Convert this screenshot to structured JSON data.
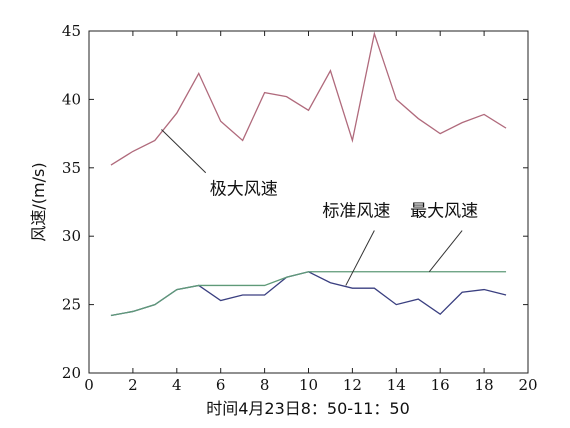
{
  "chart_data": {
    "type": "line",
    "xlabel": "时间4月23日8：50-11：50",
    "ylabel": "风速/(m/s)",
    "xlim": [
      0,
      20
    ],
    "ylim": [
      20,
      45
    ],
    "xticks": [
      0,
      2,
      4,
      6,
      8,
      10,
      12,
      14,
      16,
      18,
      20
    ],
    "yticks": [
      20,
      25,
      30,
      35,
      40,
      45
    ],
    "grid": false,
    "series": [
      {
        "name": "极大风速",
        "color": "#b06a7c",
        "x": [
          1,
          2,
          3,
          4,
          5,
          6,
          7,
          8,
          9,
          10,
          11,
          12,
          13,
          14,
          15,
          16,
          17,
          18,
          19
        ],
        "y": [
          35.2,
          36.2,
          37.0,
          39.0,
          41.9,
          38.4,
          37.0,
          40.5,
          40.2,
          39.2,
          42.1,
          37.0,
          44.8,
          40.0,
          38.6,
          37.5,
          38.3,
          38.9,
          37.9
        ]
      },
      {
        "name": "标准风速",
        "color": "#3a3f80",
        "x": [
          1,
          2,
          3,
          4,
          5,
          6,
          7,
          8,
          9,
          10,
          11,
          12,
          13,
          14,
          15,
          16,
          17,
          18,
          19
        ],
        "y": [
          24.2,
          24.5,
          25.0,
          26.1,
          26.4,
          25.3,
          25.7,
          25.7,
          27.0,
          27.4,
          26.6,
          26.2,
          26.2,
          25.0,
          25.4,
          24.3,
          25.9,
          26.1,
          25.7
        ]
      },
      {
        "name": "最大风速",
        "color": "#5f9a78",
        "x": [
          1,
          2,
          3,
          4,
          5,
          6,
          7,
          8,
          9,
          10,
          11,
          12,
          13,
          14,
          15,
          16,
          17,
          18,
          19
        ],
        "y": [
          24.2,
          24.5,
          25.0,
          26.1,
          26.4,
          26.4,
          26.4,
          26.4,
          27.0,
          27.4,
          27.4,
          27.4,
          27.4,
          27.4,
          27.4,
          27.4,
          27.4,
          27.4,
          27.4
        ]
      }
    ],
    "annotations": [
      {
        "text": "极大风速",
        "series": "极大风速",
        "point": [
          3.3,
          37.8
        ],
        "label_at": [
          5.5,
          34.2
        ]
      },
      {
        "text": "标准风速",
        "series": "标准风速",
        "point": [
          11.7,
          26.4
        ],
        "label_at": [
          13.0,
          31.0
        ]
      },
      {
        "text": "最大风速",
        "series": "最大风速",
        "point": [
          15.5,
          27.4
        ],
        "label_at": [
          17.0,
          31.0
        ]
      }
    ]
  }
}
